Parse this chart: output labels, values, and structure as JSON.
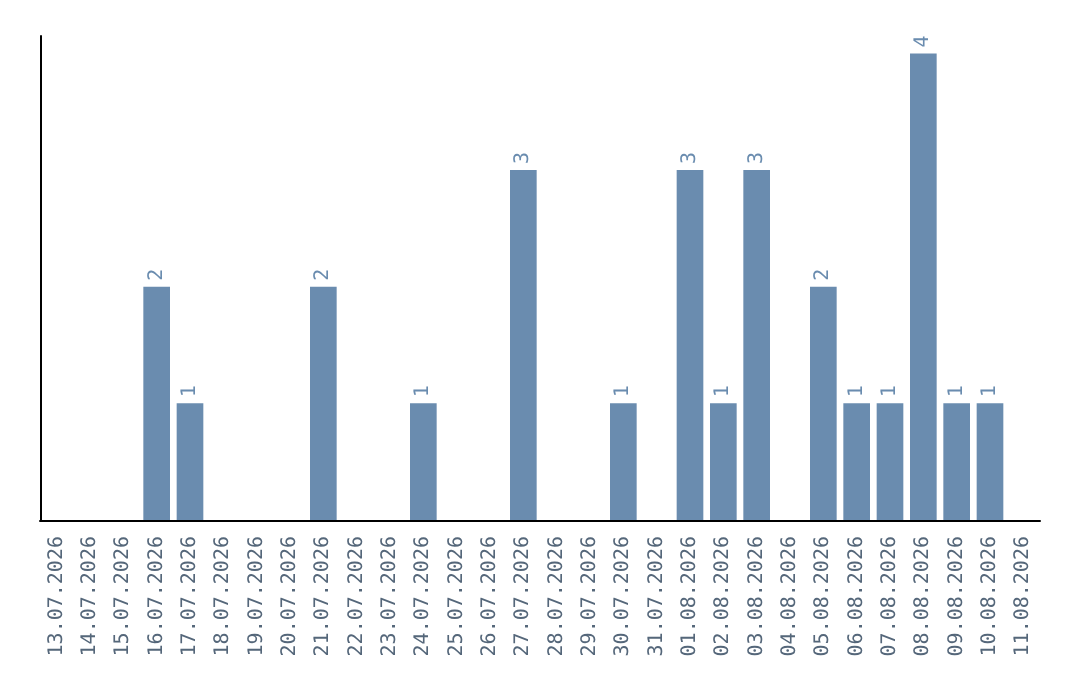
{
  "chart_data": {
    "type": "bar",
    "categories": [
      "13.07.2026",
      "14.07.2026",
      "15.07.2026",
      "16.07.2026",
      "17.07.2026",
      "18.07.2026",
      "19.07.2026",
      "20.07.2026",
      "21.07.2026",
      "22.07.2026",
      "23.07.2026",
      "24.07.2026",
      "25.07.2026",
      "26.07.2026",
      "27.07.2026",
      "28.07.2026",
      "29.07.2026",
      "30.07.2026",
      "31.07.2026",
      "01.08.2026",
      "02.08.2026",
      "03.08.2026",
      "04.08.2026",
      "05.08.2026",
      "06.08.2026",
      "07.08.2026",
      "08.08.2026",
      "09.08.2026",
      "10.08.2026",
      "11.08.2026"
    ],
    "values": [
      0,
      0,
      0,
      2,
      1,
      0,
      0,
      0,
      2,
      0,
      0,
      1,
      0,
      0,
      3,
      0,
      0,
      1,
      0,
      3,
      1,
      3,
      0,
      2,
      1,
      1,
      4,
      1,
      1,
      0
    ],
    "value_labels": [
      null,
      null,
      null,
      "2",
      "1",
      null,
      null,
      null,
      "2",
      null,
      null,
      "1",
      null,
      null,
      "3",
      null,
      null,
      "1",
      null,
      "3",
      "1",
      "3",
      null,
      "2",
      "1",
      "1",
      "4",
      "1",
      "1",
      null
    ],
    "color": "#6a8caf",
    "tick_labels": "x"
  }
}
